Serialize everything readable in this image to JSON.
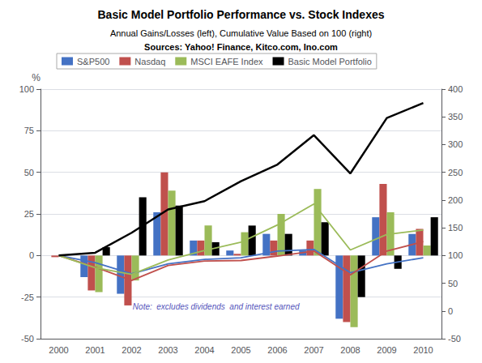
{
  "chart_data": {
    "type": "bar",
    "title": "Basic Model Portfolio Performance vs. Stock Indexes",
    "subtitle": [
      "Annual Gains/Losses (left), Cumulative Value Based on 100 (right)",
      "Sources: Yahoo! Finance, Kitco.com, Ino.com"
    ],
    "ylabel": "%",
    "annotation": "Note:  excludes dividends  and interest earned",
    "categories": [
      "2000",
      "2001",
      "2002",
      "2003",
      "2004",
      "2005",
      "2006",
      "2007",
      "2008",
      "2009",
      "2010"
    ],
    "series": [
      {
        "name": "S&P500",
        "type": "bar",
        "color": "#4472C4",
        "values": [
          0,
          -13,
          -23,
          26,
          9,
          3,
          13,
          3,
          -38,
          23,
          13
        ]
      },
      {
        "name": "Nasdaq",
        "type": "bar",
        "color": "#C0504D",
        "values": [
          -1,
          -21,
          -30,
          50,
          9,
          1,
          9,
          9,
          -40,
          43,
          16
        ]
      },
      {
        "name": "MSCI EAFE Index",
        "type": "bar",
        "color": "#9BBB59",
        "values": [
          0,
          -22,
          -15,
          39,
          18,
          14,
          25,
          40,
          -43,
          26,
          6
        ]
      },
      {
        "name": "Basic Model Portfolio",
        "type": "bar",
        "color": "#000000",
        "values": [
          0,
          5,
          35,
          30,
          8,
          18,
          13,
          20,
          -25,
          -8,
          23
        ]
      },
      {
        "name": "S&P500",
        "type": "line",
        "axis": "y2",
        "color": "#4472C4",
        "values": [
          100,
          87,
          67,
          85,
          93,
          96,
          108,
          111,
          69,
          85,
          96
        ]
      },
      {
        "name": "Nasdaq",
        "type": "line",
        "axis": "y2",
        "color": "#C0504D",
        "values": [
          100,
          79,
          55,
          82,
          90,
          91,
          99,
          108,
          65,
          108,
          125
        ]
      },
      {
        "name": "MSCI EAFE Index",
        "type": "line",
        "axis": "y2",
        "color": "#9BBB59",
        "values": [
          100,
          78,
          66,
          92,
          109,
          124,
          155,
          193,
          110,
          138,
          146
        ]
      },
      {
        "name": "Basic Model Portfolio",
        "type": "line",
        "axis": "y2",
        "color": "#000000",
        "values": [
          100,
          105,
          141,
          183,
          198,
          234,
          264,
          317,
          248,
          348,
          375
        ]
      }
    ],
    "ylim": [
      -50,
      100
    ],
    "yticks": [
      -50,
      -25,
      0,
      25,
      50,
      75,
      100
    ],
    "y2lim": [
      -50,
      400
    ],
    "y2ticks": [
      -50,
      0,
      50,
      100,
      150,
      200,
      250,
      300,
      350,
      400
    ],
    "grid": true,
    "legend": "upper left"
  }
}
